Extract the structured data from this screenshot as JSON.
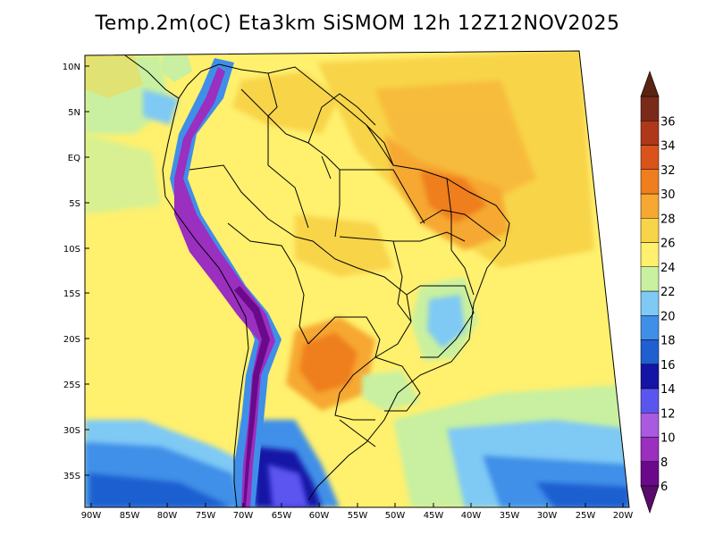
{
  "title": "Temp.2m(oC) Eta3km SiSMOM 12h 12Z12NOV2025",
  "map": {
    "lat_labels": [
      "10N",
      "5N",
      "EQ",
      "5S",
      "10S",
      "15S",
      "20S",
      "25S",
      "30S",
      "35S"
    ],
    "lon_labels": [
      "90W",
      "85W",
      "80W",
      "75W",
      "70W",
      "65W",
      "60W",
      "55W",
      "50W",
      "45W",
      "40W",
      "35W",
      "30W",
      "25W",
      "20W"
    ]
  },
  "colorbar": {
    "levels": [
      "6",
      "8",
      "10",
      "12",
      "14",
      "16",
      "18",
      "20",
      "22",
      "24",
      "26",
      "28",
      "30",
      "32",
      "34",
      "36"
    ],
    "colors": [
      "#6a0a8a",
      "#9a2fc0",
      "#a95ae0",
      "#5b55f0",
      "#1414a6",
      "#1f5fd0",
      "#3f8fe8",
      "#7fc9f5",
      "#c8f0a0",
      "#fff06e",
      "#f8d448",
      "#f6a830",
      "#ef7e1e",
      "#d9541a",
      "#b0381a",
      "#7a2a18"
    ],
    "top_color": "#5a2412",
    "bottom_color": "#5a0a6a"
  }
}
